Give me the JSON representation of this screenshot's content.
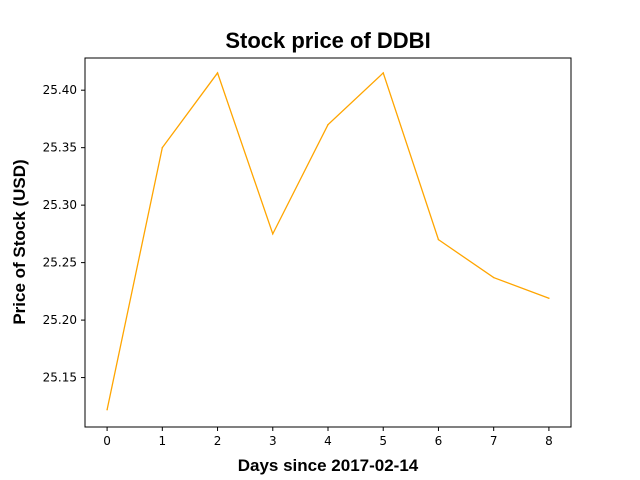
{
  "chart_data": {
    "type": "line",
    "title": "Stock price of DDBI",
    "xlabel": "Days since 2017-02-14",
    "ylabel": "Price of Stock (USD)",
    "x": [
      0,
      1,
      2,
      3,
      4,
      5,
      6,
      7,
      8
    ],
    "x_ticks": [
      "0",
      "1",
      "2",
      "3",
      "4",
      "5",
      "6",
      "7",
      "8"
    ],
    "y_ticks": [
      "25.15",
      "25.20",
      "25.25",
      "25.30",
      "25.35",
      "25.40"
    ],
    "xlim": [
      -0.4,
      8.4
    ],
    "ylim": [
      25.107,
      25.428
    ],
    "series": [
      {
        "color": "#ffa500",
        "values": [
          25.122,
          25.35,
          25.415,
          25.275,
          25.37,
          25.415,
          25.27,
          25.237,
          25.219
        ]
      }
    ],
    "grid": false,
    "legend": false
  }
}
